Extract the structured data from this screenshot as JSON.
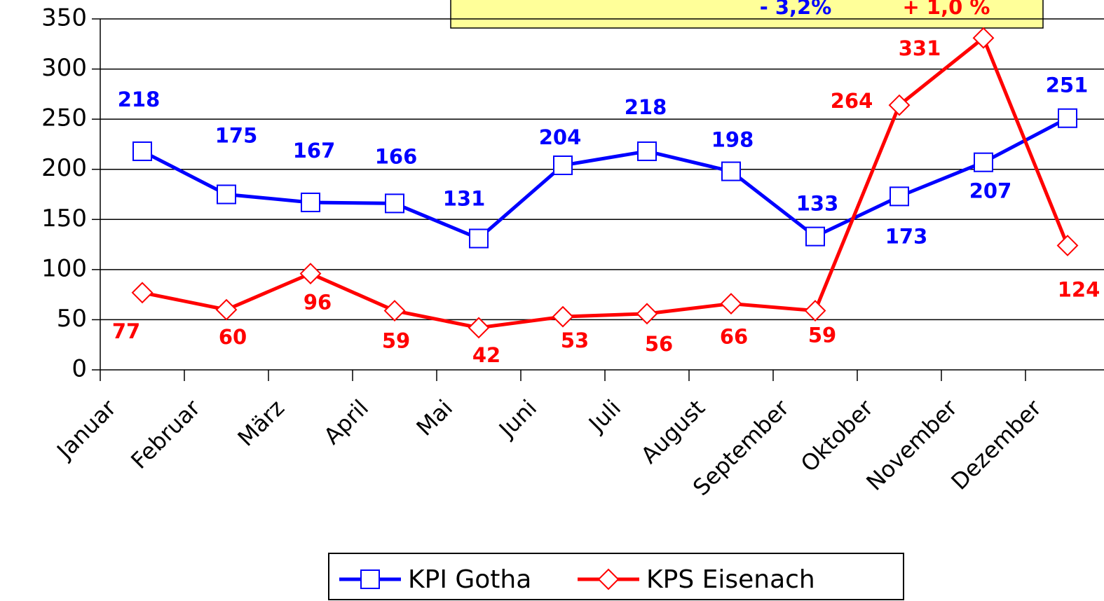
{
  "chart_data": {
    "type": "line",
    "categories": [
      "Januar",
      "Februar",
      "März",
      "April",
      "Mai",
      "Juni",
      "Juli",
      "August",
      "September",
      "Oktober",
      "November",
      "Dezember"
    ],
    "series": [
      {
        "name": "KPI Gotha",
        "color": "#0000ff",
        "marker": "square",
        "values": [
          218,
          175,
          167,
          166,
          131,
          204,
          218,
          198,
          133,
          173,
          207,
          251
        ]
      },
      {
        "name": "KPS Eisenach",
        "color": "#ff0000",
        "marker": "diamond",
        "values": [
          77,
          60,
          96,
          59,
          42,
          53,
          56,
          66,
          59,
          264,
          331,
          124
        ]
      }
    ],
    "annotations": [
      {
        "text": "- 3,2%",
        "color": "#0000ff"
      },
      {
        "text": "+ 1,0 %",
        "color": "#ff0000"
      }
    ],
    "ylim": [
      0,
      350
    ],
    "yticks": [
      0,
      50,
      100,
      150,
      200,
      250,
      300,
      350
    ],
    "grid": true,
    "legend": "bottom"
  }
}
